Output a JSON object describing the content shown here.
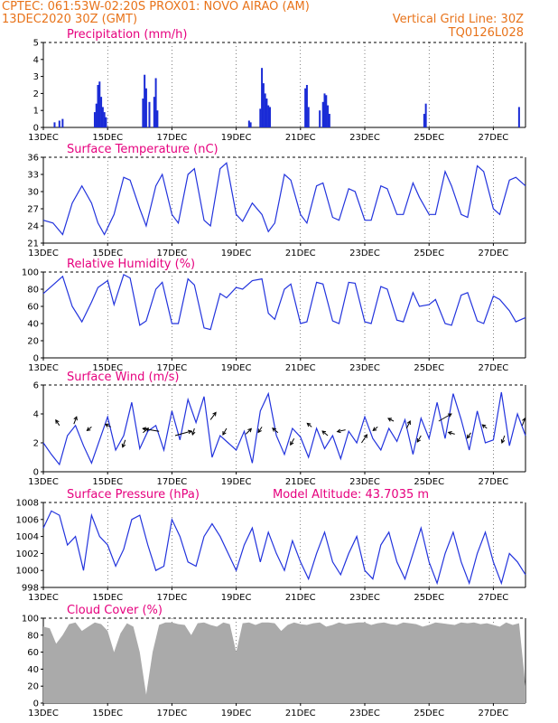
{
  "header": {
    "line1_left": "CPTEC:  061:53W-02:20S   PROX01: NOVO AIRAO (AM)",
    "line2_left": "13DEC2020 30Z (GMT)",
    "line2_right": "Vertical Grid Line: 30Z",
    "line3_right": "TQ0126L028"
  },
  "colors": {
    "header": "#e8731a",
    "title": "#e6007e",
    "line": "#2233dd",
    "bar": "#1a2bd6",
    "cloud": "#aaaaaa"
  },
  "x_ticks": [
    "13DEC",
    "15DEC",
    "17DEC",
    "19DEC",
    "21DEC",
    "23DEC",
    "25DEC",
    "27DEC"
  ],
  "chart_data": [
    {
      "type": "bar",
      "title": "Precipitation (mm/h)",
      "ylim": [
        0,
        5
      ],
      "yticks": [
        "0",
        "1",
        "2",
        "3",
        "4",
        "5"
      ],
      "days": 15,
      "events": [
        {
          "day": 0.35,
          "value": 0.3
        },
        {
          "day": 0.5,
          "value": 0.4
        },
        {
          "day": 0.6,
          "value": 0.5
        },
        {
          "day": 1.6,
          "value": 0.9
        },
        {
          "day": 1.65,
          "value": 1.4
        },
        {
          "day": 1.7,
          "value": 2.5
        },
        {
          "day": 1.75,
          "value": 2.7
        },
        {
          "day": 1.8,
          "value": 1.8
        },
        {
          "day": 1.85,
          "value": 1.2
        },
        {
          "day": 1.9,
          "value": 0.9
        },
        {
          "day": 1.95,
          "value": 0.6
        },
        {
          "day": 3.1,
          "value": 1.7
        },
        {
          "day": 3.15,
          "value": 3.1
        },
        {
          "day": 3.2,
          "value": 2.3
        },
        {
          "day": 3.3,
          "value": 1.5
        },
        {
          "day": 3.45,
          "value": 1.8
        },
        {
          "day": 3.5,
          "value": 2.9
        },
        {
          "day": 3.55,
          "value": 1.0
        },
        {
          "day": 6.4,
          "value": 0.4
        },
        {
          "day": 6.45,
          "value": 0.3
        },
        {
          "day": 6.75,
          "value": 1.1
        },
        {
          "day": 6.8,
          "value": 3.5
        },
        {
          "day": 6.85,
          "value": 2.6
        },
        {
          "day": 6.9,
          "value": 2.0
        },
        {
          "day": 6.95,
          "value": 1.7
        },
        {
          "day": 7.0,
          "value": 1.3
        },
        {
          "day": 7.05,
          "value": 1.2
        },
        {
          "day": 8.15,
          "value": 2.3
        },
        {
          "day": 8.2,
          "value": 2.5
        },
        {
          "day": 8.25,
          "value": 1.2
        },
        {
          "day": 8.6,
          "value": 1.0
        },
        {
          "day": 8.7,
          "value": 1.5
        },
        {
          "day": 8.75,
          "value": 2.0
        },
        {
          "day": 8.8,
          "value": 1.9
        },
        {
          "day": 8.85,
          "value": 1.3
        },
        {
          "day": 8.9,
          "value": 0.8
        },
        {
          "day": 11.85,
          "value": 0.8
        },
        {
          "day": 11.9,
          "value": 1.4
        },
        {
          "day": 14.8,
          "value": 1.2
        }
      ]
    },
    {
      "type": "line",
      "title": "Surface Temperature (nC)",
      "ylim": [
        21,
        36
      ],
      "yticks": [
        "21",
        "24",
        "27",
        "30",
        "33",
        "36"
      ],
      "x": [
        0,
        0.3,
        0.6,
        0.9,
        1.2,
        1.5,
        1.7,
        1.9,
        2.2,
        2.5,
        2.7,
        3.0,
        3.2,
        3.5,
        3.7,
        4.0,
        4.2,
        4.5,
        4.7,
        5.0,
        5.2,
        5.5,
        5.7,
        6.0,
        6.2,
        6.5,
        6.8,
        7.0,
        7.2,
        7.5,
        7.7,
        8.0,
        8.2,
        8.5,
        8.7,
        9.0,
        9.2,
        9.5,
        9.7,
        10.0,
        10.2,
        10.5,
        10.7,
        11.0,
        11.2,
        11.5,
        11.7,
        12.0,
        12.2,
        12.5,
        12.7,
        13.0,
        13.2,
        13.5,
        13.7,
        14.0,
        14.2,
        14.5,
        14.7,
        15.0
      ],
      "values": [
        25,
        24.5,
        22.5,
        28,
        31,
        28,
        24.5,
        22.5,
        26,
        32.5,
        32,
        27,
        24,
        31,
        33,
        26,
        24.5,
        33,
        34,
        25,
        24,
        34,
        35,
        26,
        24.8,
        28,
        26,
        23,
        24.5,
        33,
        32,
        26,
        24.5,
        31,
        31.5,
        25.5,
        25,
        30.5,
        30,
        25,
        25,
        31,
        30.5,
        26,
        26,
        31.5,
        29,
        26,
        26,
        33.5,
        31,
        26,
        25.5,
        34.5,
        33.5,
        27,
        26,
        32,
        32.5,
        31
      ]
    },
    {
      "type": "line",
      "title": "Relative Humidity (%)",
      "ylim": [
        0,
        100
      ],
      "yticks": [
        "0",
        "20",
        "40",
        "60",
        "80",
        "100"
      ],
      "x": [
        0,
        0.3,
        0.6,
        0.9,
        1.2,
        1.5,
        1.7,
        2.0,
        2.2,
        2.5,
        2.7,
        3.0,
        3.2,
        3.5,
        3.7,
        4.0,
        4.2,
        4.5,
        4.7,
        5.0,
        5.2,
        5.5,
        5.7,
        6.0,
        6.2,
        6.5,
        6.8,
        7.0,
        7.2,
        7.5,
        7.7,
        8.0,
        8.2,
        8.5,
        8.7,
        9.0,
        9.2,
        9.5,
        9.7,
        10.0,
        10.2,
        10.5,
        10.7,
        11.0,
        11.2,
        11.5,
        11.7,
        12.0,
        12.2,
        12.5,
        12.7,
        13.0,
        13.2,
        13.5,
        13.7,
        14.0,
        14.2,
        14.5,
        14.7,
        15.0
      ],
      "values": [
        75,
        85,
        95,
        60,
        42,
        65,
        82,
        90,
        62,
        97,
        93,
        38,
        43,
        80,
        88,
        40,
        40,
        92,
        85,
        35,
        33,
        75,
        70,
        82,
        80,
        90,
        92,
        52,
        45,
        80,
        86,
        40,
        42,
        88,
        86,
        43,
        40,
        88,
        87,
        42,
        40,
        83,
        80,
        44,
        42,
        76,
        60,
        62,
        68,
        40,
        38,
        73,
        76,
        43,
        40,
        72,
        68,
        55,
        42,
        47
      ]
    },
    {
      "type": "line",
      "title": "Surface Wind (m/s)",
      "ylim": [
        0,
        6
      ],
      "yticks": [
        "0",
        "2",
        "4",
        "6"
      ],
      "x": [
        0,
        0.25,
        0.5,
        0.75,
        1.0,
        1.25,
        1.5,
        1.75,
        2.0,
        2.25,
        2.5,
        2.75,
        3.0,
        3.25,
        3.5,
        3.75,
        4.0,
        4.25,
        4.5,
        4.75,
        5.0,
        5.25,
        5.5,
        5.75,
        6.0,
        6.25,
        6.5,
        6.75,
        7.0,
        7.25,
        7.5,
        7.75,
        8.0,
        8.25,
        8.5,
        8.75,
        9.0,
        9.25,
        9.5,
        9.75,
        10.0,
        10.25,
        10.5,
        10.75,
        11.0,
        11.25,
        11.5,
        11.75,
        12.0,
        12.25,
        12.5,
        12.75,
        13.0,
        13.25,
        13.5,
        13.75,
        14.0,
        14.25,
        14.5,
        14.75,
        15.0
      ],
      "values": [
        2,
        1.2,
        0.5,
        2.5,
        3.2,
        1.8,
        0.6,
        2.2,
        3.8,
        1.5,
        2.5,
        4.8,
        1.6,
        2.8,
        3.2,
        1.5,
        4.2,
        2.2,
        5.0,
        3.4,
        5.2,
        1.0,
        2.5,
        2.0,
        1.5,
        2.8,
        0.6,
        4.2,
        5.4,
        2.5,
        1.2,
        3.0,
        2.4,
        1.0,
        3.0,
        1.6,
        2.5,
        0.9,
        2.8,
        2.0,
        3.8,
        2.3,
        1.5,
        3.0,
        2.1,
        3.6,
        1.2,
        3.7,
        2.3,
        4.8,
        2.3,
        5.4,
        3.6,
        1.5,
        4.2,
        2.0,
        2.2,
        5.5,
        1.8,
        4.0,
        2.5
      ],
      "arrows": [
        {
          "day": 0.5,
          "value": 3.2,
          "dx": -4,
          "dy": -6
        },
        {
          "day": 0.95,
          "value": 3.3,
          "dx": 3,
          "dy": -8
        },
        {
          "day": 1.5,
          "value": 3.1,
          "dx": -5,
          "dy": 4
        },
        {
          "day": 2.1,
          "value": 3.1,
          "dx": -6,
          "dy": -3
        },
        {
          "day": 2.55,
          "value": 2.2,
          "dx": -3,
          "dy": 8
        },
        {
          "day": 3.1,
          "value": 2.7,
          "dx": 6,
          "dy": -5
        },
        {
          "day": 3.6,
          "value": 2.8,
          "dx": -18,
          "dy": -3
        },
        {
          "day": 4.1,
          "value": 2.5,
          "dx": 18,
          "dy": -5
        },
        {
          "day": 4.7,
          "value": 3.0,
          "dx": -2,
          "dy": 7
        },
        {
          "day": 5.2,
          "value": 3.6,
          "dx": 6,
          "dy": -8
        },
        {
          "day": 5.7,
          "value": 3.0,
          "dx": -4,
          "dy": 7
        },
        {
          "day": 6.3,
          "value": 2.6,
          "dx": 6,
          "dy": -6
        },
        {
          "day": 6.8,
          "value": 3.1,
          "dx": -4,
          "dy": 6
        },
        {
          "day": 7.3,
          "value": 2.7,
          "dx": -6,
          "dy": -5
        },
        {
          "day": 7.8,
          "value": 2.3,
          "dx": -4,
          "dy": 7
        },
        {
          "day": 8.35,
          "value": 3.1,
          "dx": -5,
          "dy": -4
        },
        {
          "day": 8.85,
          "value": 2.5,
          "dx": -6,
          "dy": -5
        },
        {
          "day": 9.4,
          "value": 2.9,
          "dx": -9,
          "dy": 2
        },
        {
          "day": 9.9,
          "value": 2.0,
          "dx": 6,
          "dy": -9
        },
        {
          "day": 10.4,
          "value": 3.1,
          "dx": -5,
          "dy": 4
        },
        {
          "day": 10.9,
          "value": 3.5,
          "dx": -6,
          "dy": -3
        },
        {
          "day": 11.3,
          "value": 3.0,
          "dx": 4,
          "dy": -8
        },
        {
          "day": 11.75,
          "value": 2.5,
          "dx": -4,
          "dy": 7
        },
        {
          "day": 12.3,
          "value": 3.5,
          "dx": 14,
          "dy": -8
        },
        {
          "day": 12.8,
          "value": 2.6,
          "dx": -7,
          "dy": -2
        },
        {
          "day": 13.3,
          "value": 2.7,
          "dx": -4,
          "dy": 6
        },
        {
          "day": 13.8,
          "value": 3.0,
          "dx": -5,
          "dy": -4
        },
        {
          "day": 14.35,
          "value": 2.5,
          "dx": -3,
          "dy": 8
        },
        {
          "day": 14.9,
          "value": 3.2,
          "dx": 3,
          "dy": -8
        }
      ]
    },
    {
      "type": "line",
      "title": "Surface Pressure (hPa)",
      "note": "Model Altitude: 43.7035 m",
      "ylim": [
        998,
        1008
      ],
      "yticks": [
        "998",
        "1000",
        "1002",
        "1004",
        "1006",
        "1008"
      ],
      "x": [
        0,
        0.25,
        0.5,
        0.75,
        1.0,
        1.25,
        1.5,
        1.75,
        2.0,
        2.25,
        2.5,
        2.75,
        3.0,
        3.25,
        3.5,
        3.75,
        4.0,
        4.25,
        4.5,
        4.75,
        5.0,
        5.25,
        5.5,
        5.75,
        6.0,
        6.25,
        6.5,
        6.75,
        7.0,
        7.25,
        7.5,
        7.75,
        8.0,
        8.25,
        8.5,
        8.75,
        9.0,
        9.25,
        9.5,
        9.75,
        10.0,
        10.25,
        10.5,
        10.75,
        11.0,
        11.25,
        11.5,
        11.75,
        12.0,
        12.25,
        12.5,
        12.75,
        13.0,
        13.25,
        13.5,
        13.75,
        14.0,
        14.25,
        14.5,
        14.75,
        15.0
      ],
      "values": [
        1005,
        1007,
        1006.5,
        1003,
        1004,
        1000,
        1006.5,
        1004,
        1003,
        1000.5,
        1002.5,
        1006,
        1006.5,
        1003,
        1000,
        1000.5,
        1006,
        1004,
        1001,
        1000.5,
        1004,
        1005.5,
        1004,
        1002,
        1000,
        1003,
        1005,
        1001,
        1004.5,
        1002,
        1000,
        1003.5,
        1001,
        999,
        1002,
        1004.5,
        1001,
        999.5,
        1002,
        1004,
        1000,
        999,
        1003,
        1004.5,
        1001,
        999,
        1002,
        1005,
        1001,
        998.5,
        1002,
        1004.5,
        1001,
        998.5,
        1002,
        1004.5,
        1001,
        998.5,
        1002,
        1001,
        999.5
      ]
    },
    {
      "type": "area",
      "title": "Cloud Cover (%)",
      "ylim": [
        0,
        100
      ],
      "yticks": [
        "0",
        "20",
        "40",
        "60",
        "80",
        "100"
      ],
      "x": [
        0,
        0.2,
        0.4,
        0.6,
        0.8,
        1.0,
        1.2,
        1.4,
        1.6,
        1.8,
        2.0,
        2.2,
        2.4,
        2.6,
        2.8,
        3.0,
        3.2,
        3.4,
        3.6,
        3.8,
        4.0,
        4.2,
        4.4,
        4.6,
        4.8,
        5.0,
        5.2,
        5.4,
        5.6,
        5.8,
        6.0,
        6.2,
        6.4,
        6.6,
        6.8,
        7.0,
        7.2,
        7.4,
        7.6,
        7.8,
        8.0,
        8.2,
        8.4,
        8.6,
        8.8,
        9.0,
        9.2,
        9.4,
        9.6,
        9.8,
        10.0,
        10.2,
        10.4,
        10.6,
        10.8,
        11.0,
        11.2,
        11.4,
        11.6,
        11.8,
        12.0,
        12.2,
        12.4,
        12.6,
        12.8,
        13.0,
        13.2,
        13.4,
        13.6,
        13.8,
        14.0,
        14.2,
        14.4,
        14.6,
        14.8,
        15.0
      ],
      "values": [
        90,
        88,
        70,
        80,
        93,
        95,
        85,
        90,
        95,
        93,
        85,
        60,
        82,
        94,
        90,
        60,
        10,
        60,
        92,
        95,
        95,
        93,
        92,
        80,
        94,
        95,
        92,
        90,
        95,
        93,
        60,
        94,
        95,
        92,
        95,
        95,
        94,
        85,
        92,
        95,
        93,
        92,
        94,
        95,
        90,
        92,
        95,
        93,
        94,
        95,
        95,
        92,
        94,
        95,
        93,
        92,
        95,
        94,
        93,
        90,
        92,
        95,
        94,
        93,
        92,
        95,
        94,
        95,
        93,
        94,
        92,
        90,
        95,
        92,
        94,
        20
      ]
    }
  ]
}
